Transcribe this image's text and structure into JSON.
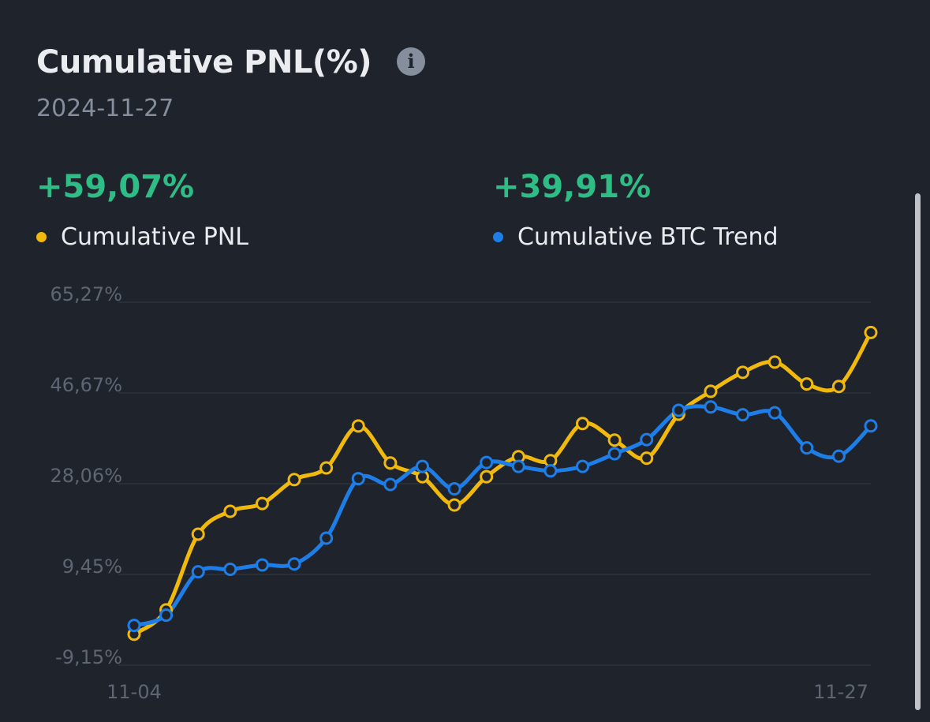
{
  "header": {
    "title": "Cumulative PNL(%)",
    "info_icon": "info-icon",
    "date": "2024-11-27"
  },
  "summary": [
    {
      "value": "+59,07%",
      "label": "Cumulative PNL",
      "color": "#f0b90b"
    },
    {
      "value": "+39,91%",
      "label": "Cumulative BTC Trend",
      "color": "#1e7ee8"
    }
  ],
  "positive_color": "#2ebd85",
  "chart_data": {
    "type": "line",
    "x": [
      "11-04",
      "11-05",
      "11-06",
      "11-07",
      "11-08",
      "11-09",
      "11-10",
      "11-11",
      "11-12",
      "11-13",
      "11-14",
      "11-15",
      "11-16",
      "11-17",
      "11-18",
      "11-19",
      "11-20",
      "11-21",
      "11-22",
      "11-23",
      "11-24",
      "11-25",
      "11-26",
      "11-27"
    ],
    "x_tick_labels": [
      "11-04",
      "11-27"
    ],
    "y_tick_labels": [
      "65,27%",
      "46,67%",
      "28,06%",
      "9,45%",
      "-9,15%"
    ],
    "y_ticks": [
      65.27,
      46.67,
      28.06,
      9.45,
      -9.15
    ],
    "ylim": [
      -9.15,
      65.27
    ],
    "grid": true,
    "series": [
      {
        "name": "Cumulative PNL",
        "color": "#f0b90b",
        "values": [
          -2.8,
          2.2,
          17.7,
          22.4,
          24.0,
          28.9,
          31.3,
          39.9,
          32.3,
          29.5,
          23.7,
          29.5,
          33.6,
          32.8,
          40.4,
          37.0,
          33.3,
          42.3,
          47.0,
          50.9,
          53.0,
          48.5,
          48.0,
          59.07
        ]
      },
      {
        "name": "Cumulative BTC Trend",
        "color": "#1e7ee8",
        "values": [
          -1.0,
          1.1,
          10.0,
          10.5,
          11.4,
          11.6,
          16.9,
          29.1,
          27.9,
          31.6,
          27.0,
          32.4,
          31.6,
          30.7,
          31.6,
          34.2,
          37.1,
          43.1,
          43.8,
          42.2,
          42.6,
          35.4,
          33.7,
          39.91
        ]
      }
    ]
  }
}
